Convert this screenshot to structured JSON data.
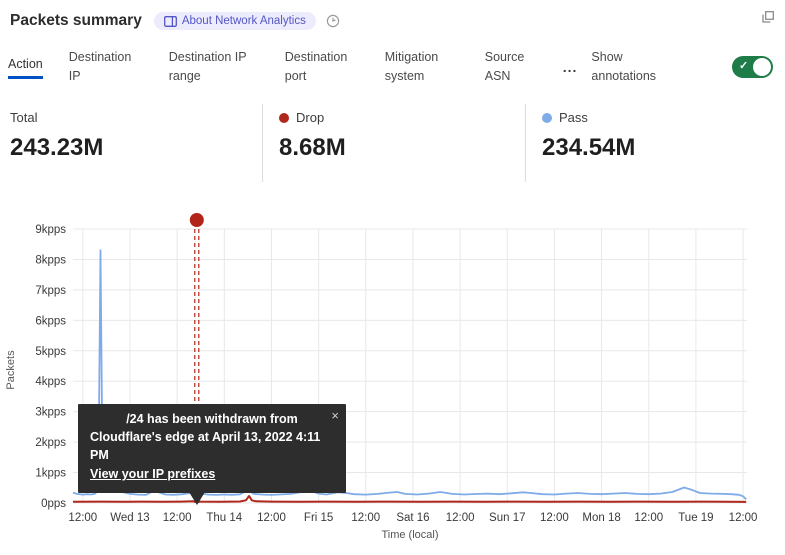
{
  "header": {
    "title": "Packets summary",
    "badge_label": "About Network Analytics"
  },
  "tabs": {
    "items": [
      {
        "label": "Action",
        "active": true
      },
      {
        "label": "Destination IP",
        "active": false
      },
      {
        "label": "Destination IP range",
        "active": false
      },
      {
        "label": "Destination port",
        "active": false
      },
      {
        "label": "Mitigation system",
        "active": false
      },
      {
        "label": "Source ASN",
        "active": false
      }
    ],
    "more_label": "...",
    "annotations_label": "Show annotations",
    "toggle_on": true,
    "toggle_color": "#1d7c47",
    "active_underline_color": "#0051c3"
  },
  "stats": {
    "items": [
      {
        "label": "Total",
        "value": "243.23M",
        "color": null
      },
      {
        "label": "Drop",
        "value": "8.68M",
        "color": "#b0271c"
      },
      {
        "label": "Pass",
        "value": "234.54M",
        "color": "#7fabe8"
      }
    ]
  },
  "tooltip": {
    "line1": "/24 has been withdrawn from",
    "line2": "Cloudflare's edge at April 13, 2022 4:11 PM",
    "link_label": "View your IP prefixes",
    "close_label": "×"
  },
  "chart_data": {
    "type": "line",
    "title": "Packets summary",
    "xlabel": "Time (local)",
    "ylabel": "Packets",
    "ylim": [
      0,
      9000
    ],
    "t_domain_hours": [
      -2.5,
      169
    ],
    "x_tick_step_hours": 12,
    "grid": true,
    "grid_color": "#e8e8e8",
    "legend_position": "top (stats row)",
    "y_ticks": [
      "0pps",
      "1kpps",
      "2kpps",
      "3kpps",
      "4kpps",
      "5kpps",
      "6kpps",
      "7kpps",
      "8kpps",
      "9kpps"
    ],
    "x_ticks": [
      "12:00",
      "Wed 13",
      "12:00",
      "Thu 14",
      "12:00",
      "Fri 15",
      "12:00",
      "Sat 16",
      "12:00",
      "Sun 17",
      "12:00",
      "Mon 18",
      "12:00",
      "Tue 19",
      "12:00"
    ],
    "series": [
      {
        "name": "Pass",
        "color": "#7fabe8",
        "width": 1.8,
        "points": [
          [
            -2.5,
            340
          ],
          [
            -1.5,
            300
          ],
          [
            0,
            275
          ],
          [
            1,
            290
          ],
          [
            2,
            280
          ],
          [
            3,
            300
          ],
          [
            3.7,
            380
          ],
          [
            4.1,
            2500
          ],
          [
            4.5,
            8300
          ],
          [
            4.9,
            2600
          ],
          [
            5.4,
            1300
          ],
          [
            6.2,
            950
          ],
          [
            7.2,
            600
          ],
          [
            8.5,
            450
          ],
          [
            10,
            360
          ],
          [
            12,
            300
          ],
          [
            14,
            275
          ],
          [
            16,
            265
          ],
          [
            18.5,
            420
          ],
          [
            19.5,
            340
          ],
          [
            21,
            280
          ],
          [
            23,
            270
          ],
          [
            25,
            285
          ],
          [
            27.5,
            330
          ],
          [
            28.7,
            460
          ],
          [
            30,
            310
          ],
          [
            32,
            275
          ],
          [
            34,
            265
          ],
          [
            36,
            280
          ],
          [
            38,
            270
          ],
          [
            40,
            285
          ],
          [
            42,
            420
          ],
          [
            43.5,
            300
          ],
          [
            46,
            275
          ],
          [
            48,
            265
          ],
          [
            50,
            280
          ],
          [
            53,
            300
          ],
          [
            56,
            370
          ],
          [
            58,
            400
          ],
          [
            60,
            310
          ],
          [
            62,
            280
          ],
          [
            65,
            350
          ],
          [
            67,
            330
          ],
          [
            69,
            290
          ],
          [
            72,
            275
          ],
          [
            75,
            300
          ],
          [
            78,
            340
          ],
          [
            80,
            360
          ],
          [
            82,
            300
          ],
          [
            85,
            280
          ],
          [
            88,
            310
          ],
          [
            91,
            360
          ],
          [
            94,
            300
          ],
          [
            97,
            280
          ],
          [
            100,
            295
          ],
          [
            103,
            310
          ],
          [
            106,
            290
          ],
          [
            109,
            320
          ],
          [
            112,
            350
          ],
          [
            114,
            330
          ],
          [
            117,
            290
          ],
          [
            120,
            280
          ],
          [
            123,
            310
          ],
          [
            126,
            330
          ],
          [
            129,
            300
          ],
          [
            132,
            290
          ],
          [
            135,
            310
          ],
          [
            138,
            330
          ],
          [
            141,
            300
          ],
          [
            144,
            290
          ],
          [
            147,
            310
          ],
          [
            150,
            360
          ],
          [
            153,
            510
          ],
          [
            155,
            430
          ],
          [
            157,
            330
          ],
          [
            160,
            310
          ],
          [
            163,
            300
          ],
          [
            165,
            290
          ],
          [
            167,
            270
          ],
          [
            168,
            220
          ],
          [
            168.8,
            120
          ]
        ]
      },
      {
        "name": "Drop",
        "color": "#b0271c",
        "width": 2,
        "points": [
          [
            -2.5,
            40
          ],
          [
            5,
            45
          ],
          [
            10,
            40
          ],
          [
            15,
            45
          ],
          [
            20,
            40
          ],
          [
            25,
            45
          ],
          [
            28,
            55
          ],
          [
            30,
            45
          ],
          [
            35,
            40
          ],
          [
            40,
            50
          ],
          [
            41.5,
            90
          ],
          [
            42.3,
            230
          ],
          [
            43,
            90
          ],
          [
            44,
            55
          ],
          [
            48,
            45
          ],
          [
            55,
            40
          ],
          [
            62,
            45
          ],
          [
            70,
            40
          ],
          [
            78,
            45
          ],
          [
            86,
            40
          ],
          [
            94,
            45
          ],
          [
            102,
            40
          ],
          [
            110,
            45
          ],
          [
            118,
            40
          ],
          [
            126,
            45
          ],
          [
            134,
            40
          ],
          [
            142,
            45
          ],
          [
            150,
            40
          ],
          [
            158,
            45
          ],
          [
            164,
            40
          ],
          [
            168.8,
            35
          ]
        ]
      }
    ],
    "annotation": {
      "t_hours": 29,
      "color": "#b2231a",
      "style": "double-dashed vertical line with dot above plot"
    }
  }
}
